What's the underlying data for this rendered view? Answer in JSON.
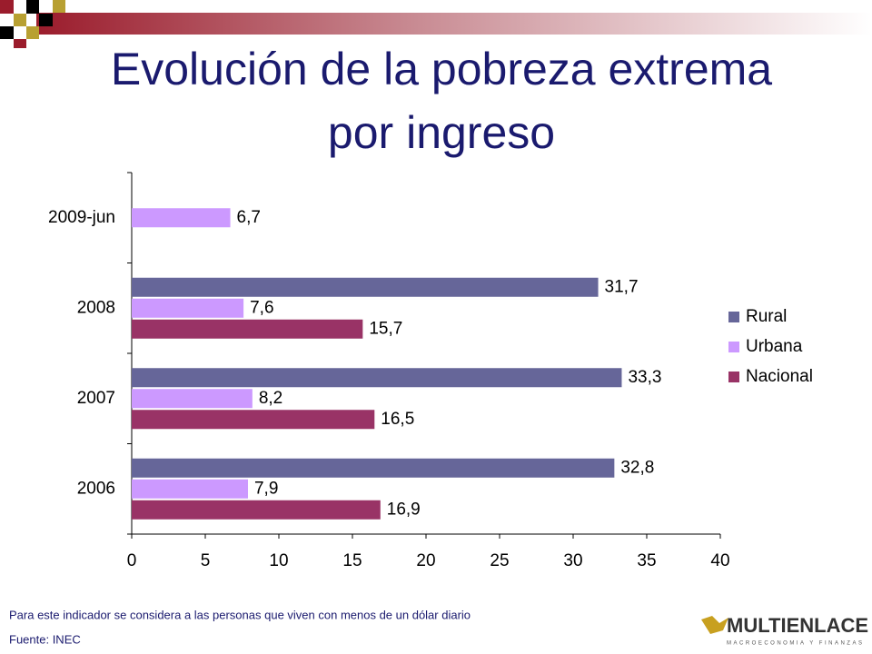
{
  "chart_data": {
    "type": "barh",
    "title": "Evolución de la pobreza extrema por ingreso",
    "title_lines": [
      "Evolución de la pobreza extrema",
      "por ingreso"
    ],
    "categories": [
      "2009-jun",
      "2008",
      "2007",
      "2006"
    ],
    "series": [
      {
        "name": "Rural",
        "color": "#666699",
        "values": [
          null,
          31.7,
          33.3,
          32.8
        ],
        "value_labels": [
          null,
          "31,7",
          "33,3",
          "32,8"
        ]
      },
      {
        "name": "Urbana",
        "color": "#cc99ff",
        "values": [
          6.7,
          7.6,
          8.2,
          7.9
        ],
        "value_labels": [
          "6,7",
          "7,6",
          "8,2",
          "7,9"
        ]
      },
      {
        "name": "Nacional",
        "color": "#993366",
        "values": [
          null,
          15.7,
          16.5,
          16.9
        ],
        "value_labels": [
          null,
          "15,7",
          "16,5",
          "16,9"
        ]
      }
    ],
    "xlim": [
      0,
      40
    ],
    "xticks": [
      0,
      5,
      10,
      15,
      20,
      25,
      30,
      35,
      40
    ],
    "legend": "right",
    "grid": false,
    "footnote": "Para este indicador se considera a las personas que viven con menos de un dólar diario",
    "source": "Fuente: INEC",
    "logo": "MULTIENLACE",
    "logo_tagline": "MACROECONOMIA Y FINANZAS"
  }
}
